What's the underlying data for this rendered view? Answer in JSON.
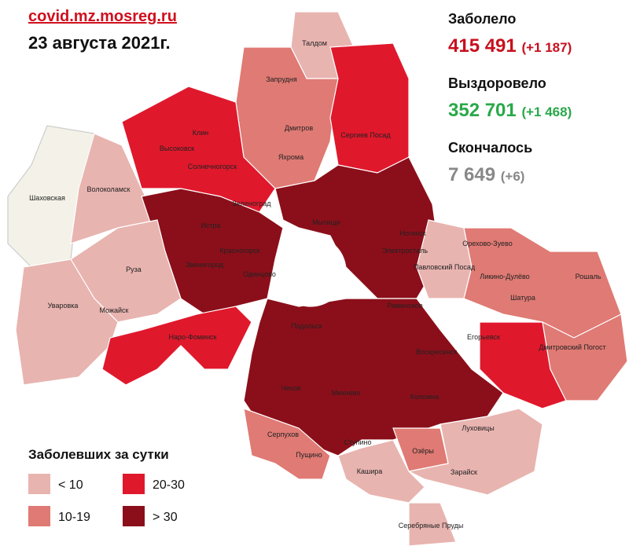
{
  "header": {
    "site": "covid.mz.mosreg.ru",
    "date": "23 августа 2021г."
  },
  "stats": [
    {
      "label": "Заболело",
      "value": "415 491",
      "delta": "(+1 187)"
    },
    {
      "label": "Выздоровело",
      "value": "352 701",
      "delta": "(+1 468)"
    },
    {
      "label": "Скончалось",
      "value": "7 649",
      "delta": "(+6)"
    }
  ],
  "legend": {
    "title": "Заболевших за сутки",
    "items": [
      "< 10",
      "10-19",
      "20-30",
      "> 30"
    ]
  },
  "places": [
    "Талдом",
    "Запрудня",
    "Дмитров",
    "Яхрома",
    "Сергиев Посад",
    "Клин",
    "Высоковск",
    "Солнечногорск",
    "Шаховская",
    "Волоколамск",
    "Зеленоград",
    "Истра",
    "Мытищи",
    "Ногинск",
    "Электросталь",
    "Красногорск",
    "Звенигород",
    "Одинцово",
    "Руза",
    "Уваровка",
    "Можайск",
    "Наро-Фоминск",
    "Павловский Посад",
    "Орехово-Зуево",
    "Ликино-Дулёво",
    "Рошаль",
    "Шатура",
    "Раменское",
    "Егорьевск",
    "Дмитровский Погост",
    "Воскресенск",
    "Подольск",
    "Чехов",
    "Михнево",
    "Коломна",
    "Серпухов",
    "Пущино",
    "Ступино",
    "Озёры",
    "Луховицы",
    "Кашира",
    "Зарайск",
    "Серебряные Пруды"
  ]
}
